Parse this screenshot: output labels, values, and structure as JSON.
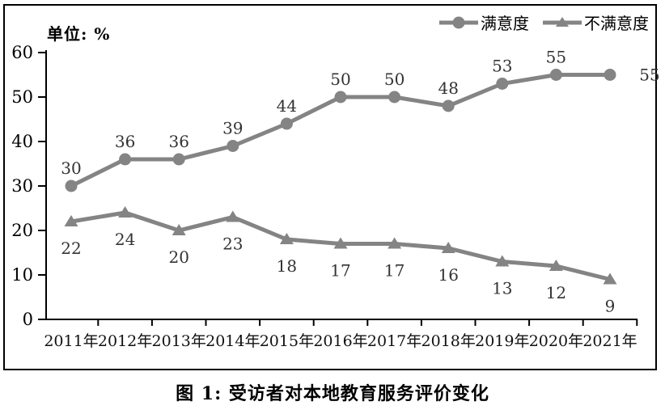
{
  "unit_label": "单位: %",
  "caption": "图 1: 受访者对本地教育服务评价变化",
  "legend": [
    {
      "label": "满意度",
      "marker": "circle"
    },
    {
      "label": "不满意度",
      "marker": "triangle"
    }
  ],
  "chart_data": {
    "type": "line",
    "title": "图 1: 受访者对本地教育服务评价变化",
    "unit": "单位: %",
    "categories": [
      "2011年",
      "2012年",
      "2013年",
      "2014年",
      "2015年",
      "2016年",
      "2017年",
      "2018年",
      "2019年",
      "2020年",
      "2021年"
    ],
    "series": [
      {
        "name": "满意度",
        "marker": "circle",
        "label_position": "above",
        "values": [
          30,
          36,
          36,
          39,
          44,
          50,
          50,
          48,
          53,
          55,
          55
        ]
      },
      {
        "name": "不满意度",
        "marker": "triangle",
        "label_position": "below",
        "values": [
          22,
          24,
          20,
          23,
          18,
          17,
          17,
          16,
          13,
          12,
          9
        ]
      }
    ],
    "ylim": [
      0,
      60
    ],
    "yticks": [
      0,
      10,
      20,
      30,
      40,
      50,
      60
    ],
    "grid": false,
    "legend_position": "top-right",
    "line_color": "#848484",
    "axis_color": "#000000",
    "value_label_color": "#333333"
  }
}
